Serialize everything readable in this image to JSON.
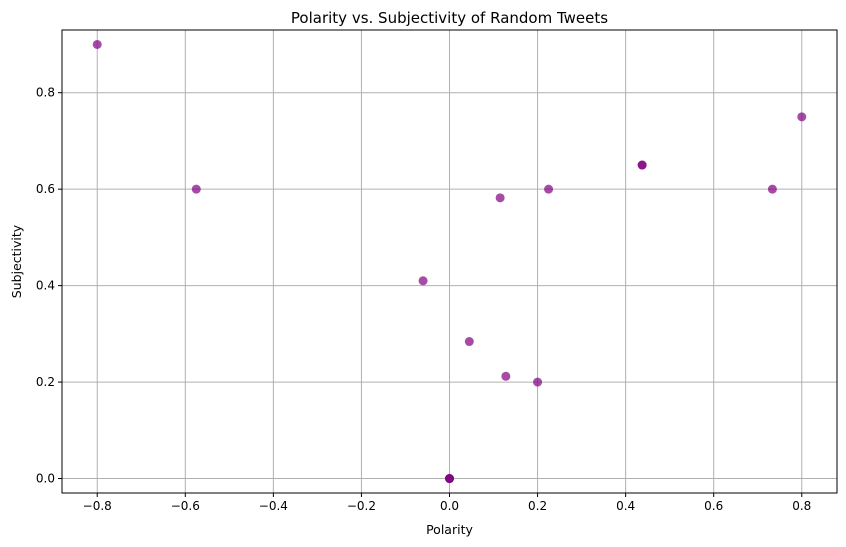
{
  "chart_data": {
    "type": "scatter",
    "title": "Polarity vs. Subjectivity of Random Tweets",
    "xlabel": "Polarity",
    "ylabel": "Subjectivity",
    "xlim": [
      -0.88,
      0.88
    ],
    "ylim": [
      -0.03,
      0.93
    ],
    "xticks": [
      -0.8,
      -0.6,
      -0.4,
      -0.2,
      0.0,
      0.2,
      0.4,
      0.6,
      0.8
    ],
    "xtick_labels": [
      "−0.8",
      "−0.6",
      "−0.4",
      "−0.2",
      "0.0",
      "0.2",
      "0.4",
      "0.6",
      "0.8"
    ],
    "yticks": [
      0.0,
      0.2,
      0.4,
      0.6,
      0.8
    ],
    "ytick_labels": [
      "0.0",
      "0.2",
      "0.4",
      "0.6",
      "0.8"
    ],
    "grid": true,
    "marker_color": "#800080",
    "marker_alpha": 0.7,
    "x": [
      -0.8,
      -0.575,
      -0.06,
      0.0,
      0.0,
      0.0,
      0.045,
      0.115,
      0.128,
      0.2,
      0.225,
      0.4375,
      0.4375,
      0.7333,
      0.8
    ],
    "y": [
      0.9,
      0.6,
      0.41,
      0.0,
      0.0,
      0.0,
      0.284,
      0.582,
      0.212,
      0.2,
      0.6,
      0.65,
      0.65,
      0.6,
      0.75
    ]
  }
}
